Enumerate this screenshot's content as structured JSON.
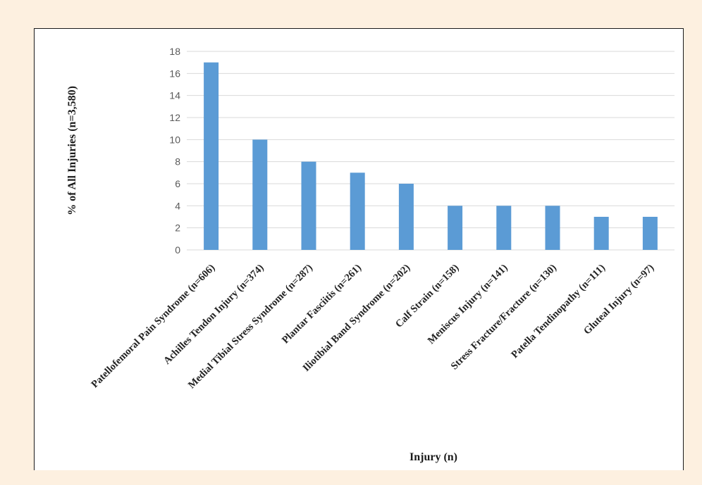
{
  "chart_data": {
    "type": "bar",
    "categories": [
      "Patellofemoral Pain Syndrome (n=606)",
      "Achilles Tendon Injury (n=374)",
      "Medial Tibial Stress Syndrome (n=287)",
      "Plantar Fasciitis (n=261)",
      "Iliotibial Band Syndrome (n=202)",
      "Calf Strain (n=158)",
      "Meniscus Injury (n=141)",
      "Stress Fracture/Fracture (n=130)",
      "Patella Tendinopathy (n=111)",
      "Gluteal Injury (n=97)"
    ],
    "values": [
      17,
      10,
      8,
      7,
      6,
      4,
      4,
      4,
      3,
      3
    ],
    "title": "",
    "xlabel": "Injury  (n)",
    "ylabel": "% of All Injuries  (n=3,580)",
    "ylim": [
      0,
      18
    ],
    "yticks": [
      0,
      2,
      4,
      6,
      8,
      10,
      12,
      14,
      16,
      18
    ],
    "grid": true,
    "legend": "none",
    "bar_color": "#5b9bd5",
    "grid_color": "#d9d9d9"
  }
}
